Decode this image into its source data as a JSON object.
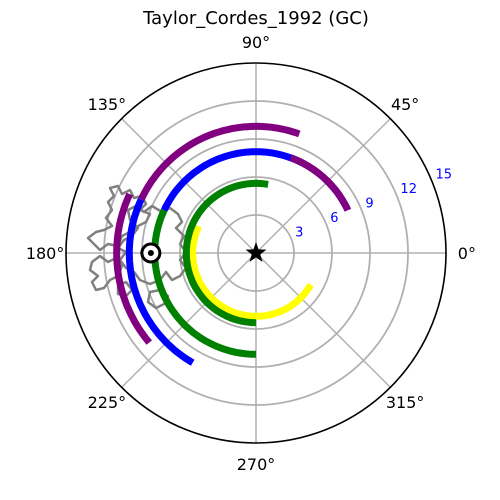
{
  "chart_data": {
    "type": "line",
    "projection": "polar",
    "title": "Taylor_Cordes_1992 (GC)",
    "theta_ticks": [
      "0°",
      "45°",
      "90°",
      "135°",
      "180°",
      "225°",
      "270°",
      "315°"
    ],
    "r_ticks": [
      "3",
      "6",
      "9",
      "12",
      "15"
    ],
    "r_values": [
      3,
      6,
      9,
      12,
      15
    ],
    "rlim": [
      0,
      15
    ],
    "grid": true,
    "series": [
      {
        "color": "#ffff00",
        "r": 5.0,
        "theta_start_deg": 155,
        "theta_end_deg": 330,
        "kind": "arc"
      },
      {
        "color": "#008000",
        "r": 5.5,
        "theta_start_deg": 80,
        "theta_end_deg": 270,
        "kind": "arc"
      },
      {
        "color": "#008000",
        "r": 8.0,
        "theta_start_deg": 155,
        "theta_end_deg": 270,
        "kind": "arc"
      },
      {
        "color": "#0000ff",
        "r": 8.0,
        "theta_start_deg": 25,
        "theta_end_deg": 155,
        "kind": "arc"
      },
      {
        "color": "#0000ff",
        "r": 10.0,
        "theta_start_deg": 155,
        "theta_end_deg": 240,
        "kind": "arc"
      },
      {
        "color": "#800080",
        "r": 8.0,
        "theta_start_deg": 25,
        "theta_end_deg": 70,
        "kind": "arc"
      },
      {
        "color": "#800080",
        "r": 10.0,
        "theta_start_deg": 70,
        "theta_end_deg": 155,
        "kind": "arc"
      },
      {
        "color": "#800080",
        "r": 11.0,
        "theta_start_deg": 155,
        "theta_end_deg": 220,
        "kind": "arc"
      }
    ],
    "center_marker": {
      "symbol": "star",
      "color": "#000000",
      "r": 0
    },
    "galactic_center_marker": {
      "symbol": "circle-dot",
      "color": "#000000",
      "r": 8.3,
      "theta_deg": 180
    },
    "galaxy_outline": {
      "color": "#808080",
      "description_symbol": "outline"
    }
  }
}
